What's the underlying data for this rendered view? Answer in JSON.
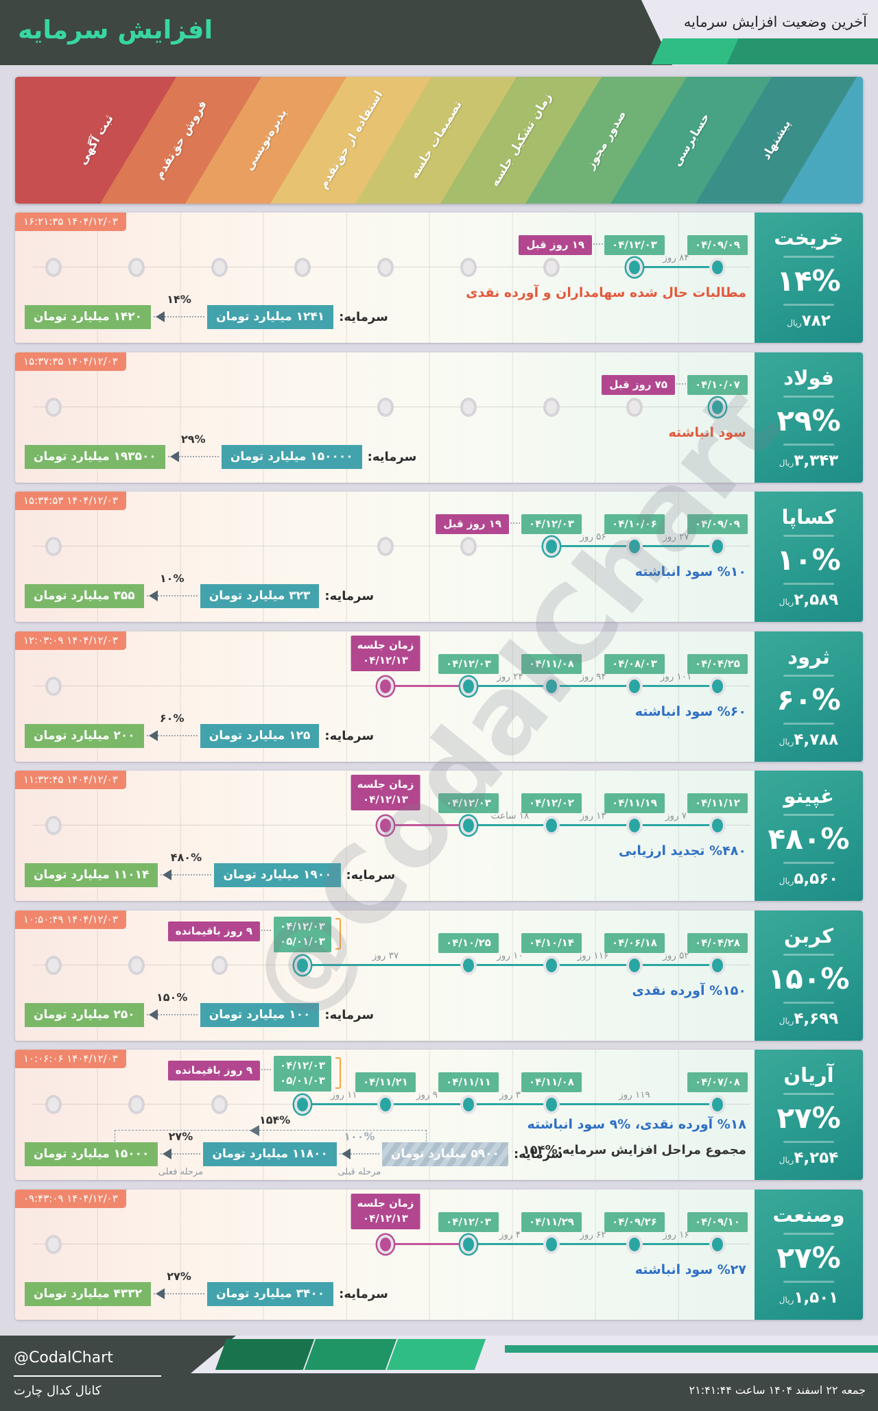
{
  "header": {
    "title": "افزایش سرمایه",
    "subtitle": "آخرین وضعیت افزایش سرمایه"
  },
  "colors": {
    "page_bg": "#dcdae3",
    "header_dark": "#3e4742",
    "title_accent": "#38d6a2",
    "panel_teal": "#2b9c90",
    "timestamp_badge": "#f0876c",
    "date_badge_green": "#5cb794",
    "magenta_badge": "#b2478f",
    "dot_teal": "#2aa6a2",
    "dot_magenta": "#bb4d96",
    "chain_teal": "#43a3ac",
    "chain_green": "#7ab868",
    "desc_red": "#e2593c",
    "desc_blue": "#2f6fc4",
    "bracket_orange": "#f5a43c",
    "footer_bar_teal": "#2aa17e"
  },
  "stages": [
    {
      "label": "ثبت آگهی",
      "color": "#c84f50"
    },
    {
      "label": "فروش حق‌تقدم",
      "color": "#dc7853"
    },
    {
      "label": "پذیره‌نویسی",
      "color": "#e89f60"
    },
    {
      "label": "استفاده از حق‌تقدم",
      "color": "#e6c271"
    },
    {
      "label": "تصمیمات جلسه",
      "color": "#cbc46e"
    },
    {
      "label": "زمان تشکیل جلسه",
      "color": "#a6bd6b"
    },
    {
      "label": "صدور مجوز",
      "color": "#70b275"
    },
    {
      "label": "حسابرسی",
      "color": "#47a383"
    },
    {
      "label": "پیشنهاد",
      "color": "#3b8f89"
    },
    {
      "label": "",
      "color": "#49a8be"
    }
  ],
  "companies": [
    {
      "name": "خریخت",
      "timestamp": "۱۴۰۴/۱۲/۰۳ ۱۶:۲۱:۳۵",
      "percent": "۱۴%",
      "price": "۷۸۲",
      "price_unit": "ریال",
      "descriptions": [
        {
          "text": "مطالبات حال شده سهامداران و آورده نقدی",
          "tone": "red"
        }
      ],
      "capital": {
        "label": "سرمایه:",
        "steps": [
          {
            "value": "۱۲۴۱ میلیارد تومان",
            "style": "teal"
          },
          {
            "arrow": "۱۴%"
          },
          {
            "value": "۱۴۲۰ میلیارد تومان",
            "style": "green"
          }
        ]
      },
      "timeline": {
        "inactive": [
          1,
          2,
          3,
          4,
          5,
          6,
          7
        ],
        "points": [
          {
            "col": 8,
            "type": "teal",
            "ringed": true,
            "badge": [
              "۰۴/۱۲/۰۳"
            ],
            "prebadge": "۱۹ روز قبل"
          },
          {
            "col": 9,
            "type": "teal",
            "badge": [
              "۰۴/۰۹/۰۹"
            ]
          }
        ],
        "gaps": [
          {
            "a": 8,
            "b": 9,
            "label": "۸۴ روز"
          }
        ]
      }
    },
    {
      "name": "فولاد",
      "timestamp": "۱۴۰۴/۱۲/۰۳ ۱۵:۳۷:۳۵",
      "percent": "۲۹%",
      "price": "۳,۳۴۳",
      "price_unit": "ریال",
      "descriptions": [
        {
          "text": "سود انباشته",
          "tone": "red"
        }
      ],
      "capital": {
        "label": "سرمایه:",
        "steps": [
          {
            "value": "۱۵۰۰۰۰ میلیارد تومان",
            "style": "teal"
          },
          {
            "arrow": "۲۹%"
          },
          {
            "value": "۱۹۳۵۰۰ میلیارد تومان",
            "style": "green"
          }
        ]
      },
      "timeline": {
        "inactive": [
          1,
          5,
          6,
          7,
          8
        ],
        "points": [
          {
            "col": 9,
            "type": "teal",
            "ringed": true,
            "badge": [
              "۰۴/۱۰/۰۷"
            ],
            "prebadge": "۷۵ روز قبل"
          }
        ],
        "gaps": []
      }
    },
    {
      "name": "کساپا",
      "timestamp": "۱۴۰۴/۱۲/۰۳ ۱۵:۳۴:۵۳",
      "percent": "۱۰%",
      "price": "۲,۵۸۹",
      "price_unit": "ریال",
      "descriptions": [
        {
          "text": "%۱۰ سود انباشته",
          "tone": "blue"
        }
      ],
      "capital": {
        "label": "سرمایه:",
        "steps": [
          {
            "value": "۳۲۳ میلیارد تومان",
            "style": "teal"
          },
          {
            "arrow": "۱۰%"
          },
          {
            "value": "۳۵۵ میلیارد تومان",
            "style": "green"
          }
        ]
      },
      "timeline": {
        "inactive": [
          1,
          5,
          6
        ],
        "points": [
          {
            "col": 7,
            "type": "teal",
            "ringed": true,
            "badge": [
              "۰۴/۱۲/۰۳"
            ],
            "prebadge": "۱۹ روز قبل"
          },
          {
            "col": 8,
            "type": "teal",
            "badge": [
              "۰۴/۱۰/۰۶"
            ]
          },
          {
            "col": 9,
            "type": "teal",
            "badge": [
              "۰۴/۰۹/۰۹"
            ]
          }
        ],
        "gaps": [
          {
            "a": 7,
            "b": 8,
            "label": "۵۶ روز"
          },
          {
            "a": 8,
            "b": 9,
            "label": "۲۷ روز"
          }
        ]
      }
    },
    {
      "name": "ثرود",
      "timestamp": "۱۴۰۴/۱۲/۰۳ ۱۲:۰۳:۰۹",
      "percent": "۶۰%",
      "price": "۴,۷۸۸",
      "price_unit": "ریال",
      "descriptions": [
        {
          "text": "%۶۰ سود انباشته",
          "tone": "blue"
        }
      ],
      "capital": {
        "label": "سرمایه:",
        "steps": [
          {
            "value": "۱۲۵ میلیارد تومان",
            "style": "teal"
          },
          {
            "arrow": "۶۰%"
          },
          {
            "value": "۲۰۰ میلیارد تومان",
            "style": "green"
          }
        ]
      },
      "timeline": {
        "inactive": [
          1
        ],
        "points": [
          {
            "col": 5,
            "type": "magenta",
            "ringed": true,
            "badge": [
              "زمان جلسه",
              "۰۴/۱۲/۱۳"
            ]
          },
          {
            "col": 6,
            "type": "teal",
            "ringed": true,
            "badge": [
              "۰۴/۱۲/۰۳"
            ]
          },
          {
            "col": 7,
            "type": "teal",
            "badge": [
              "۰۴/۱۱/۰۸"
            ]
          },
          {
            "col": 8,
            "type": "teal",
            "badge": [
              "۰۴/۰۸/۰۳"
            ]
          },
          {
            "col": 9,
            "type": "teal",
            "badge": [
              "۰۴/۰۴/۲۵"
            ]
          }
        ],
        "gaps": [
          {
            "a": 6,
            "b": 7,
            "label": "۲۴ روز"
          },
          {
            "a": 7,
            "b": 8,
            "label": "۹۴ روز"
          },
          {
            "a": 8,
            "b": 9,
            "label": "۱۰۱ روز"
          }
        ]
      }
    },
    {
      "name": "غپینو",
      "timestamp": "۱۴۰۴/۱۲/۰۳ ۱۱:۳۲:۴۵",
      "percent": "۴۸۰%",
      "price": "۵,۵۶۰",
      "price_unit": "ریال",
      "descriptions": [
        {
          "text": "%۴۸۰ تجدید ارزیابی",
          "tone": "blue"
        }
      ],
      "capital": {
        "label": "سرمایه:",
        "steps": [
          {
            "value": "۱۹۰۰ میلیارد تومان",
            "style": "teal"
          },
          {
            "arrow": "۴۸۰%"
          },
          {
            "value": "۱۱۰۱۴ میلیارد تومان",
            "style": "green"
          }
        ]
      },
      "timeline": {
        "inactive": [
          1
        ],
        "points": [
          {
            "col": 5,
            "type": "magenta",
            "ringed": true,
            "badge": [
              "زمان جلسه",
              "۰۴/۱۲/۱۳"
            ]
          },
          {
            "col": 6,
            "type": "teal",
            "ringed": true,
            "badge": [
              "۰۴/۱۲/۰۳"
            ]
          },
          {
            "col": 7,
            "type": "teal",
            "badge": [
              "۰۴/۱۲/۰۲"
            ]
          },
          {
            "col": 8,
            "type": "teal",
            "badge": [
              "۰۴/۱۱/۱۹"
            ]
          },
          {
            "col": 9,
            "type": "teal",
            "badge": [
              "۰۴/۱۱/۱۲"
            ]
          }
        ],
        "gaps": [
          {
            "a": 6,
            "b": 7,
            "label": "۱۸ ساعت"
          },
          {
            "a": 7,
            "b": 8,
            "label": "۱۳ روز"
          },
          {
            "a": 8,
            "b": 9,
            "label": "۷ روز"
          }
        ]
      }
    },
    {
      "name": "کربن",
      "timestamp": "۱۴۰۴/۱۲/۰۳ ۱۰:۵۰:۴۹",
      "percent": "۱۵۰%",
      "price": "۴,۶۹۹",
      "price_unit": "ریال",
      "descriptions": [
        {
          "text": "%۱۵۰ آورده نقدی",
          "tone": "blue"
        }
      ],
      "capital": {
        "label": "سرمایه:",
        "steps": [
          {
            "value": "۱۰۰ میلیارد تومان",
            "style": "teal"
          },
          {
            "arrow": "۱۵۰%"
          },
          {
            "value": "۲۵۰ میلیارد تومان",
            "style": "green"
          }
        ]
      },
      "timeline": {
        "inactive": [
          1,
          2,
          3
        ],
        "points": [
          {
            "col": 4,
            "type": "teal",
            "ringed": true,
            "badge": [
              "۰۴/۱۲/۰۳",
              "۰۵/۰۱/۰۳"
            ],
            "prebadge": "۹ روز باقیمانده",
            "bracket": true
          },
          {
            "col": 6,
            "type": "teal",
            "badge": [
              "۰۴/۱۰/۲۵"
            ]
          },
          {
            "col": 7,
            "type": "teal",
            "badge": [
              "۰۴/۱۰/۱۴"
            ]
          },
          {
            "col": 8,
            "type": "teal",
            "badge": [
              "۰۴/۰۶/۱۸"
            ]
          },
          {
            "col": 9,
            "type": "teal",
            "badge": [
              "۰۴/۰۴/۲۸"
            ]
          }
        ],
        "gaps": [
          {
            "a": 4,
            "b": 6,
            "label": "۳۷ روز"
          },
          {
            "a": 6,
            "b": 7,
            "label": "۱۰ روز"
          },
          {
            "a": 7,
            "b": 8,
            "label": "۱۱۶ روز"
          },
          {
            "a": 8,
            "b": 9,
            "label": "۵۲ روز"
          }
        ]
      }
    },
    {
      "name": "آریان",
      "timestamp": "۱۴۰۴/۱۲/۰۳ ۱۰:۰۶:۰۶",
      "percent": "۲۷%",
      "price": "۴,۲۵۴",
      "price_unit": "ریال",
      "descriptions": [
        {
          "text": "%۱۸ آورده نقدی، %۹ سود انباشته",
          "tone": "blue"
        },
        {
          "text": "مجموع مراحل افزایش سرمایه:%۱۵۴",
          "tone": "dark"
        }
      ],
      "capital": {
        "label": "سرمایه:",
        "total": "۱۵۴%",
        "steps": [
          {
            "value": "۵۹۰۰ میلیارد تومان",
            "style": "hatch"
          },
          {
            "arrow": "۱۰۰%",
            "note": "مرحله قبلی",
            "light": true
          },
          {
            "value": "۱۱۸۰۰ میلیارد تومان",
            "style": "teal"
          },
          {
            "arrow": "۲۷%",
            "note": "مرحله فعلی"
          },
          {
            "value": "۱۵۰۰۰ میلیارد تومان",
            "style": "green"
          }
        ]
      },
      "timeline": {
        "inactive": [
          1,
          2,
          3
        ],
        "points": [
          {
            "col": 4,
            "type": "teal",
            "ringed": true,
            "badge": [
              "۰۴/۱۲/۰۳",
              "۰۵/۰۱/۰۳"
            ],
            "prebadge": "۹ روز باقیمانده",
            "bracket": true
          },
          {
            "col": 5,
            "type": "teal",
            "badge": [
              "۰۴/۱۱/۲۱"
            ]
          },
          {
            "col": 6,
            "type": "teal",
            "badge": [
              "۰۴/۱۱/۱۱"
            ]
          },
          {
            "col": 7,
            "type": "teal",
            "badge": [
              "۰۴/۱۱/۰۸"
            ]
          },
          {
            "col": 9,
            "type": "teal",
            "badge": [
              "۰۴/۰۷/۰۸"
            ]
          }
        ],
        "gaps": [
          {
            "a": 4,
            "b": 5,
            "label": "۱۱ روز"
          },
          {
            "a": 5,
            "b": 6,
            "label": "۹ روز"
          },
          {
            "a": 6,
            "b": 7,
            "label": "۳ روز"
          },
          {
            "a": 7,
            "b": 9,
            "label": "۱۱۹ روز"
          }
        ]
      }
    },
    {
      "name": "وصنعت",
      "timestamp": "۱۴۰۴/۱۲/۰۳ ۰۹:۴۳:۰۹",
      "percent": "۲۷%",
      "price": "۱,۵۰۱",
      "price_unit": "ریال",
      "descriptions": [
        {
          "text": "%۲۷ سود انباشته",
          "tone": "blue"
        }
      ],
      "capital": {
        "label": "سرمایه:",
        "steps": [
          {
            "value": "۳۴۰۰ میلیارد تومان",
            "style": "teal"
          },
          {
            "arrow": "۲۷%"
          },
          {
            "value": "۴۳۳۲ میلیارد تومان",
            "style": "green"
          }
        ]
      },
      "timeline": {
        "inactive": [
          1
        ],
        "points": [
          {
            "col": 5,
            "type": "magenta",
            "ringed": true,
            "badge": [
              "زمان جلسه",
              "۰۴/۱۲/۱۳"
            ]
          },
          {
            "col": 6,
            "type": "teal",
            "ringed": true,
            "badge": [
              "۰۴/۱۲/۰۳"
            ]
          },
          {
            "col": 7,
            "type": "teal",
            "badge": [
              "۰۴/۱۱/۲۹"
            ]
          },
          {
            "col": 8,
            "type": "teal",
            "badge": [
              "۰۴/۰۹/۲۶"
            ]
          },
          {
            "col": 9,
            "type": "teal",
            "badge": [
              "۰۴/۰۹/۱۰"
            ]
          }
        ],
        "gaps": [
          {
            "a": 6,
            "b": 7,
            "label": "۴ روز"
          },
          {
            "a": 7,
            "b": 8,
            "label": "۶۲ روز"
          },
          {
            "a": 8,
            "b": 9,
            "label": "۱۶ روز"
          }
        ]
      }
    }
  ],
  "watermark": {
    "text": "@CodalChart"
  },
  "footer": {
    "handle": "@CodalChart",
    "channel": "کانال کدال چارت",
    "datetime": "جمعه ۲۲ اسفند ۱۴۰۴ ساعت ۲۱:۴۱:۴۴"
  }
}
